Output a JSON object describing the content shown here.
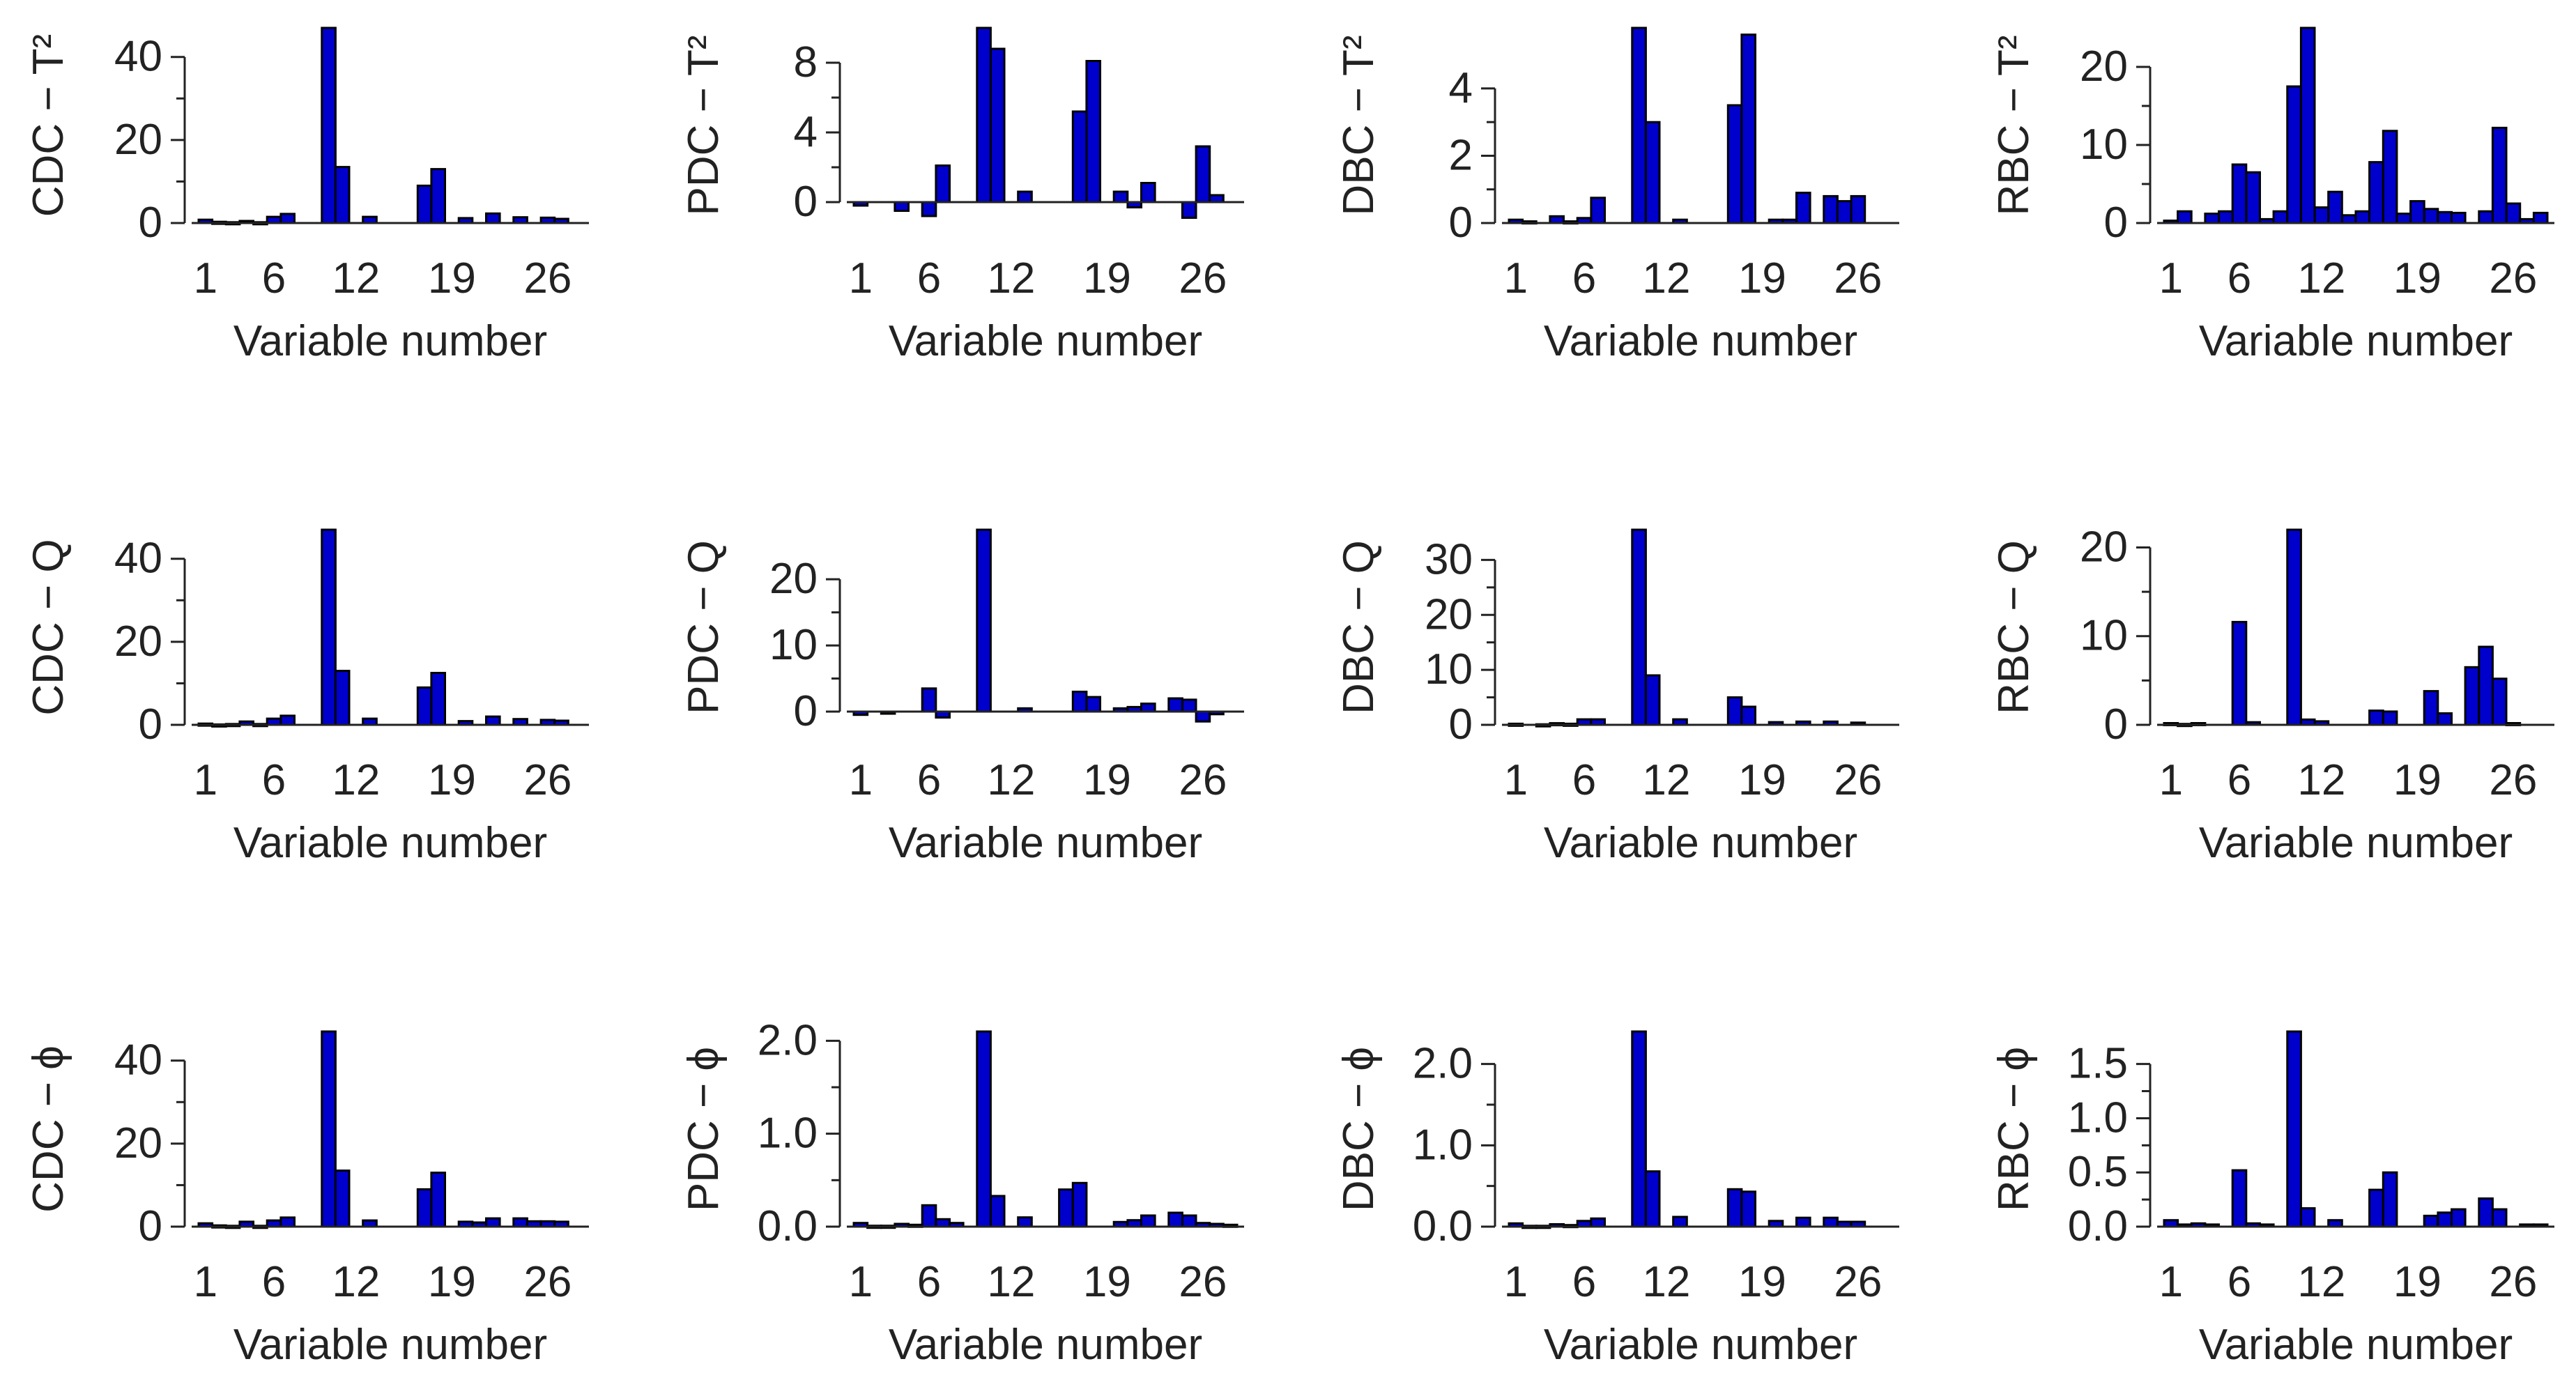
{
  "figure": {
    "bar_color": "#0000CC",
    "bar_stroke": "#000000",
    "axis_color": "#222222"
  },
  "chart_data": [
    {
      "type": "bar",
      "ylabel": "CDC − T²",
      "xlabel": "Variable number",
      "xticks": [
        "1",
        "6",
        "12",
        "19",
        "26"
      ],
      "yticks": [
        "0",
        "20",
        "40"
      ],
      "ylim": [
        0,
        47
      ],
      "x": [
        1,
        2,
        3,
        4,
        5,
        6,
        7,
        8,
        9,
        10,
        11,
        12,
        13,
        14,
        15,
        16,
        17,
        18,
        19,
        20,
        21,
        22,
        23,
        24,
        25,
        26,
        27,
        28
      ],
      "values": [
        0.8,
        0.3,
        0.2,
        0.5,
        0.2,
        1.5,
        2.2,
        0,
        0,
        47,
        13.5,
        0,
        1.5,
        0,
        0,
        0,
        9,
        13,
        0,
        1.2,
        0,
        2.3,
        0,
        1.4,
        0,
        1.3,
        1.0,
        0
      ]
    },
    {
      "type": "bar",
      "ylabel": "PDC − T²",
      "xlabel": "Variable number",
      "xticks": [
        "1",
        "6",
        "12",
        "19",
        "26"
      ],
      "yticks": [
        "0",
        "4",
        "8"
      ],
      "ylim": [
        -1.2,
        10
      ],
      "x": [
        1,
        2,
        3,
        4,
        5,
        6,
        7,
        8,
        9,
        10,
        11,
        12,
        13,
        14,
        15,
        16,
        17,
        18,
        19,
        20,
        21,
        22,
        23,
        24,
        25,
        26,
        27,
        28
      ],
      "values": [
        -0.2,
        0,
        0,
        -0.5,
        0,
        -0.8,
        2.1,
        0,
        0,
        10,
        8.8,
        0,
        0.6,
        0,
        0,
        0,
        5.2,
        8.1,
        0,
        0.6,
        -0.3,
        1.1,
        0,
        0,
        -0.9,
        3.2,
        0.4,
        0
      ]
    },
    {
      "type": "bar",
      "ylabel": "DBC − T²",
      "xlabel": "Variable number",
      "xticks": [
        "1",
        "6",
        "12",
        "19",
        "26"
      ],
      "yticks": [
        "0",
        "2",
        "4"
      ],
      "ylim": [
        0,
        5.8
      ],
      "x": [
        1,
        2,
        3,
        4,
        5,
        6,
        7,
        8,
        9,
        10,
        11,
        12,
        13,
        14,
        15,
        16,
        17,
        18,
        19,
        20,
        21,
        22,
        23,
        24,
        25,
        26,
        27,
        28
      ],
      "values": [
        0.1,
        0.05,
        0,
        0.2,
        0.05,
        0.15,
        0.75,
        0,
        0,
        5.8,
        3.0,
        0,
        0.1,
        0,
        0,
        0,
        3.5,
        5.6,
        0,
        0.1,
        0.1,
        0.9,
        0,
        0.8,
        0.65,
        0.8,
        0,
        0
      ]
    },
    {
      "type": "bar",
      "ylabel": "RBC − T²",
      "xlabel": "Variable number",
      "xticks": [
        "1",
        "6",
        "12",
        "19",
        "26"
      ],
      "yticks": [
        "0",
        "10",
        "20"
      ],
      "ylim": [
        0,
        25
      ],
      "x": [
        1,
        2,
        3,
        4,
        5,
        6,
        7,
        8,
        9,
        10,
        11,
        12,
        13,
        14,
        15,
        16,
        17,
        18,
        19,
        20,
        21,
        22,
        23,
        24,
        25,
        26,
        27,
        28
      ],
      "values": [
        0.3,
        1.5,
        0,
        1.2,
        1.5,
        7.5,
        6.5,
        0.5,
        1.5,
        17.5,
        25,
        2.0,
        4.0,
        1.0,
        1.5,
        7.8,
        11.8,
        1.2,
        2.8,
        1.8,
        1.4,
        1.3,
        0,
        1.5,
        12.2,
        2.5,
        0.5,
        1.3
      ]
    },
    {
      "type": "bar",
      "ylabel": "CDC − Q",
      "xlabel": "Variable number",
      "xticks": [
        "1",
        "6",
        "12",
        "19",
        "26"
      ],
      "yticks": [
        "0",
        "20",
        "40"
      ],
      "ylim": [
        0,
        47
      ],
      "x": [
        1,
        2,
        3,
        4,
        5,
        6,
        7,
        8,
        9,
        10,
        11,
        12,
        13,
        14,
        15,
        16,
        17,
        18,
        19,
        20,
        21,
        22,
        23,
        24,
        25,
        26,
        27,
        28
      ],
      "values": [
        0.3,
        0.1,
        0.2,
        0.8,
        0.2,
        1.5,
        2.2,
        0,
        0,
        47,
        13,
        0,
        1.5,
        0,
        0,
        0,
        9,
        12.5,
        0,
        0.9,
        0,
        2.0,
        0,
        1.4,
        0,
        1.2,
        1.0,
        0
      ]
    },
    {
      "type": "bar",
      "ylabel": "PDC − Q",
      "xlabel": "Variable number",
      "xticks": [
        "1",
        "6",
        "12",
        "19",
        "26"
      ],
      "yticks": [
        "0",
        "10",
        "20"
      ],
      "ylim": [
        -2,
        27.5
      ],
      "x": [
        1,
        2,
        3,
        4,
        5,
        6,
        7,
        8,
        9,
        10,
        11,
        12,
        13,
        14,
        15,
        16,
        17,
        18,
        19,
        20,
        21,
        22,
        23,
        24,
        25,
        26,
        27,
        28
      ],
      "values": [
        -0.5,
        0,
        -0.3,
        0,
        0,
        3.5,
        -0.9,
        0,
        0,
        27.5,
        0,
        0,
        0.5,
        0,
        0,
        0,
        3.0,
        2.2,
        0,
        0.5,
        0.7,
        1.2,
        0,
        2.0,
        1.8,
        -1.5,
        -0.4,
        0
      ]
    },
    {
      "type": "bar",
      "ylabel": "DBC − Q",
      "xlabel": "Variable number",
      "xticks": [
        "1",
        "6",
        "12",
        "19",
        "26"
      ],
      "yticks": [
        "0",
        "10",
        "20",
        "30"
      ],
      "ylim": [
        0,
        35.5
      ],
      "x": [
        1,
        2,
        3,
        4,
        5,
        6,
        7,
        8,
        9,
        10,
        11,
        12,
        13,
        14,
        15,
        16,
        17,
        18,
        19,
        20,
        21,
        22,
        23,
        24,
        25,
        26,
        27,
        28
      ],
      "values": [
        0.2,
        0,
        0.1,
        0.3,
        0.2,
        1.0,
        1.0,
        0,
        0,
        35.5,
        9.0,
        0,
        1.0,
        0,
        0,
        0,
        5.0,
        3.3,
        0,
        0.5,
        0,
        0.6,
        0,
        0.6,
        0,
        0.4,
        0,
        0
      ]
    },
    {
      "type": "bar",
      "ylabel": "RBC − Q",
      "xlabel": "Variable number",
      "xticks": [
        "1",
        "6",
        "12",
        "19",
        "26"
      ],
      "yticks": [
        "0",
        "10",
        "20"
      ],
      "ylim": [
        0,
        22
      ],
      "x": [
        1,
        2,
        3,
        4,
        5,
        6,
        7,
        8,
        9,
        10,
        11,
        12,
        13,
        14,
        15,
        16,
        17,
        18,
        19,
        20,
        21,
        22,
        23,
        24,
        25,
        26,
        27,
        28
      ],
      "values": [
        0.2,
        0.1,
        0.2,
        0,
        0,
        11.6,
        0.3,
        0,
        0,
        22,
        0.6,
        0.4,
        0,
        0,
        0,
        1.6,
        1.5,
        0,
        0,
        3.8,
        1.3,
        0,
        6.5,
        8.8,
        5.2,
        0.2,
        0,
        0
      ]
    },
    {
      "type": "bar",
      "ylabel": "CDC − ϕ",
      "xlabel": "Variable number",
      "xticks": [
        "1",
        "6",
        "12",
        "19",
        "26"
      ],
      "yticks": [
        "0",
        "20",
        "40"
      ],
      "ylim": [
        0,
        47
      ],
      "x": [
        1,
        2,
        3,
        4,
        5,
        6,
        7,
        8,
        9,
        10,
        11,
        12,
        13,
        14,
        15,
        16,
        17,
        18,
        19,
        20,
        21,
        22,
        23,
        24,
        25,
        26,
        27,
        28
      ],
      "values": [
        0.8,
        0.3,
        0.2,
        1.2,
        0.2,
        1.5,
        2.2,
        0,
        0,
        47,
        13.5,
        0,
        1.5,
        0,
        0,
        0,
        9,
        13,
        0,
        1.2,
        1.0,
        2.0,
        0,
        2.0,
        1.3,
        1.3,
        1.2,
        0
      ]
    },
    {
      "type": "bar",
      "ylabel": "PDC − ϕ",
      "xlabel": "Variable number",
      "xticks": [
        "1",
        "6",
        "12",
        "19",
        "26"
      ],
      "yticks": [
        "0.0",
        "1.0",
        "2.0"
      ],
      "ylim": [
        0,
        2.1
      ],
      "x": [
        1,
        2,
        3,
        4,
        5,
        6,
        7,
        8,
        9,
        10,
        11,
        12,
        13,
        14,
        15,
        16,
        17,
        18,
        19,
        20,
        21,
        22,
        23,
        24,
        25,
        26,
        27,
        28
      ],
      "values": [
        0.04,
        0.01,
        0.01,
        0.03,
        0.02,
        0.23,
        0.08,
        0.04,
        0,
        2.1,
        0.33,
        0,
        0.1,
        0,
        0,
        0.4,
        0.47,
        0,
        0,
        0.05,
        0.07,
        0.12,
        0,
        0.15,
        0.12,
        0.04,
        0.03,
        0.02
      ]
    },
    {
      "type": "bar",
      "ylabel": "DBC − ϕ",
      "xlabel": "Variable number",
      "xticks": [
        "1",
        "6",
        "12",
        "19",
        "26"
      ],
      "yticks": [
        "0.0",
        "1.0",
        "2.0"
      ],
      "ylim": [
        0,
        2.4
      ],
      "x": [
        1,
        2,
        3,
        4,
        5,
        6,
        7,
        8,
        9,
        10,
        11,
        12,
        13,
        14,
        15,
        16,
        17,
        18,
        19,
        20,
        21,
        22,
        23,
        24,
        25,
        26,
        27,
        28
      ],
      "values": [
        0.04,
        0.01,
        0.01,
        0.03,
        0.02,
        0.07,
        0.1,
        0,
        0,
        2.4,
        0.68,
        0,
        0.12,
        0,
        0,
        0,
        0.46,
        0.43,
        0,
        0.07,
        0,
        0.11,
        0,
        0.11,
        0.06,
        0.06,
        0,
        0
      ]
    },
    {
      "type": "bar",
      "ylabel": "RBC − ϕ",
      "xlabel": "Variable number",
      "xticks": [
        "1",
        "6",
        "12",
        "19",
        "26"
      ],
      "yticks": [
        "0.0",
        "0.5",
        "1.0",
        "1.5"
      ],
      "ylim": [
        0,
        1.8
      ],
      "x": [
        1,
        2,
        3,
        4,
        5,
        6,
        7,
        8,
        9,
        10,
        11,
        12,
        13,
        14,
        15,
        16,
        17,
        18,
        19,
        20,
        21,
        22,
        23,
        24,
        25,
        26,
        27,
        28
      ],
      "values": [
        0.06,
        0.02,
        0.03,
        0.02,
        0,
        0.52,
        0.03,
        0.02,
        0,
        1.8,
        0.17,
        0,
        0.06,
        0,
        0,
        0.34,
        0.5,
        0,
        0,
        0.1,
        0.13,
        0.16,
        0,
        0.26,
        0.16,
        0,
        0.02,
        0.02
      ]
    }
  ]
}
